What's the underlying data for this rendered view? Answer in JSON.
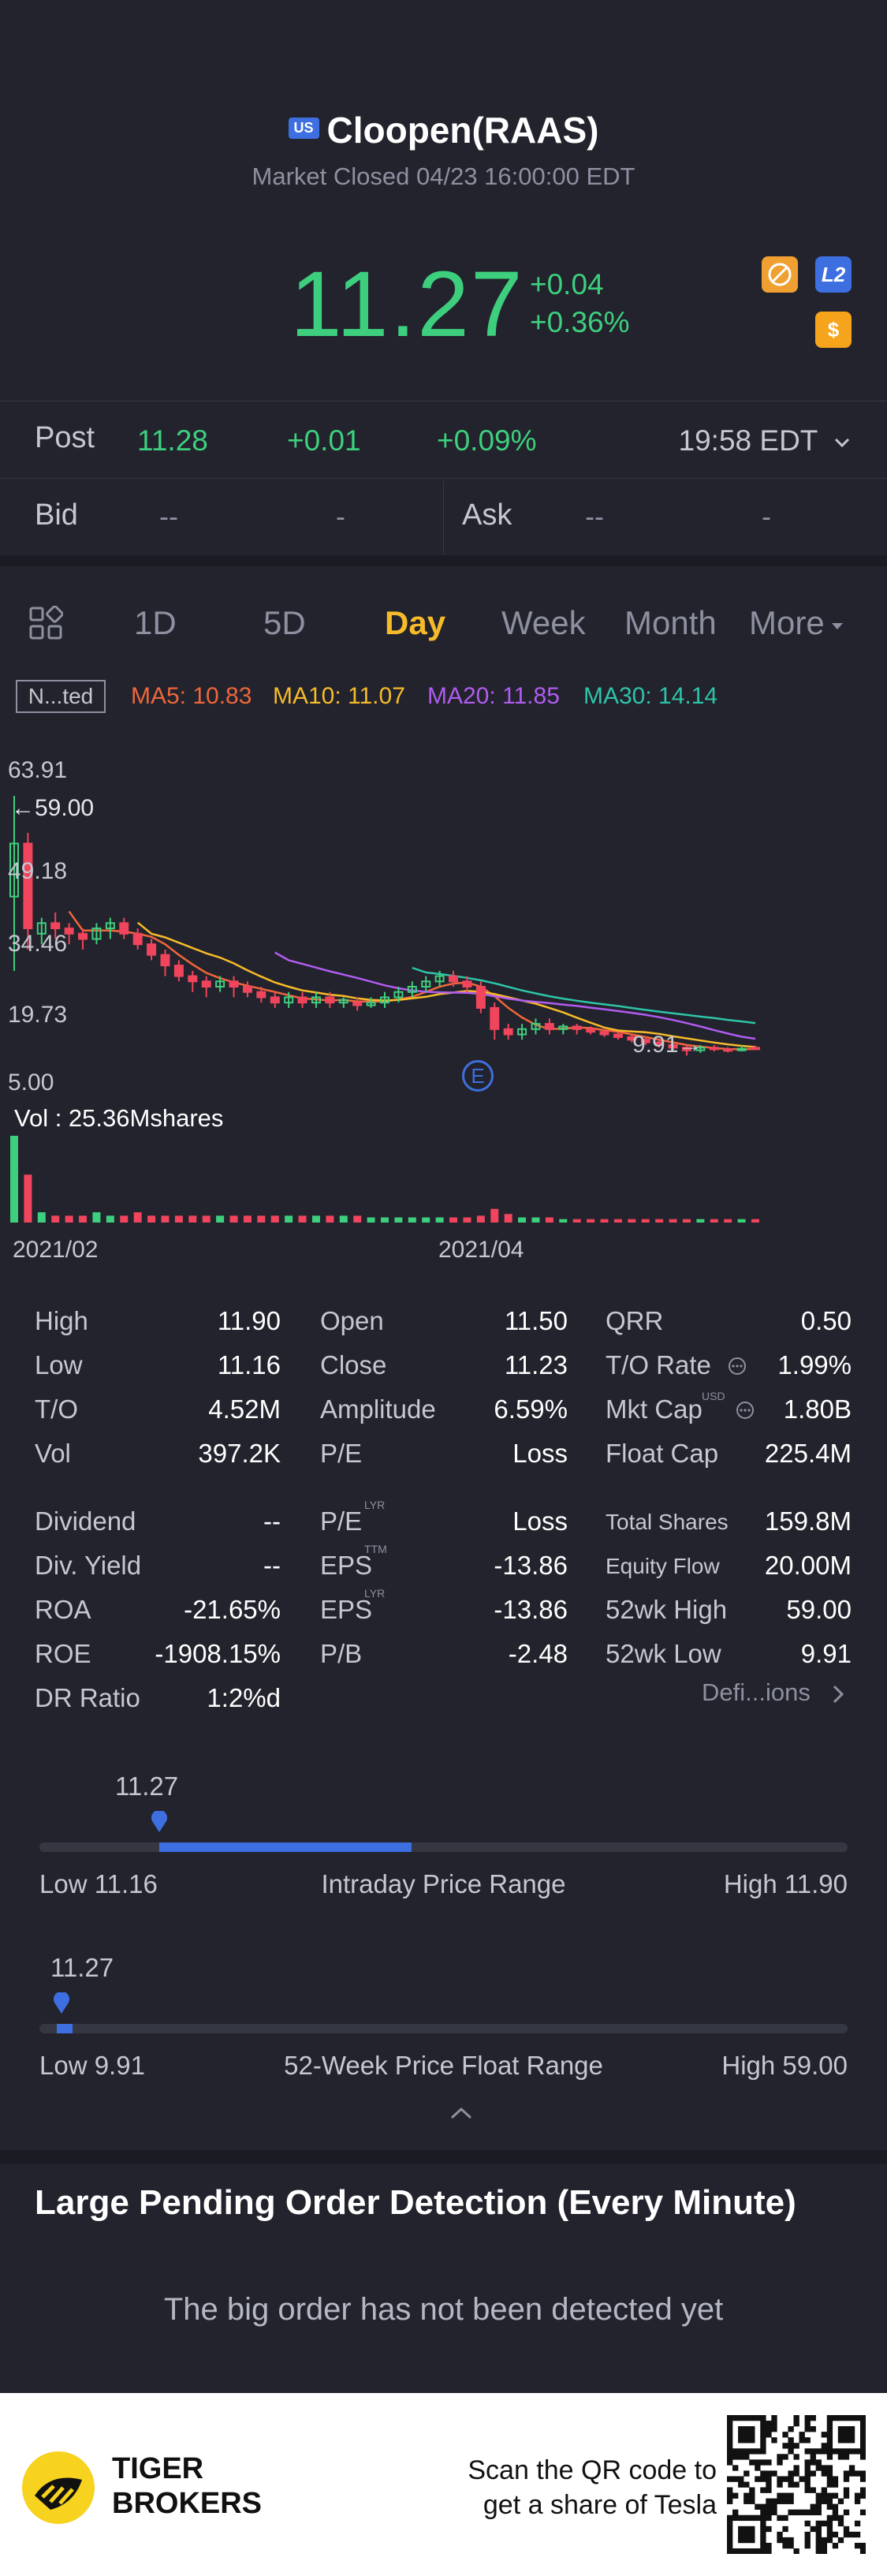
{
  "header": {
    "market_badge": "US",
    "title": "Cloopen(RAAS)",
    "market_status": "Market Closed 04/23 16:00:00 EDT",
    "price": "11.27",
    "change": "+0.04",
    "change_pct": "+0.36%",
    "icons": [
      "compass-icon",
      "l2-icon",
      "dollar-icon"
    ],
    "l2_label": "L2",
    "dollar_label": "$"
  },
  "post": {
    "label": "Post",
    "price": "11.28",
    "change": "+0.01",
    "change_pct": "+0.09%",
    "time": "19:58 EDT"
  },
  "bidask": {
    "bid_label": "Bid",
    "bid_price": "--",
    "bid_size": "-",
    "ask_label": "Ask",
    "ask_price": "--",
    "ask_size": "-"
  },
  "tabs": {
    "items": [
      "1D",
      "5D",
      "Day",
      "Week",
      "Month",
      "More"
    ],
    "active": "Day"
  },
  "ma_legend": {
    "adjust": "N...ted",
    "ma5": "MA5: 10.83",
    "ma10": "MA10: 11.07",
    "ma20": "MA20: 11.85",
    "ma30": "MA30: 14.14",
    "colors": {
      "ma5": "#f0663b",
      "ma10": "#f7bb2a",
      "ma20": "#b05cf0",
      "ma30": "#2ec4a9"
    }
  },
  "chart_data": {
    "type": "candlestick",
    "y_ticks": [
      "63.91",
      "49.18",
      "34.46",
      "19.73",
      "5.00"
    ],
    "y_range": [
      5.0,
      63.91
    ],
    "x_labels": [
      "2021/02",
      "2021/04"
    ],
    "high_marker": "59.00",
    "low_marker": "9.91",
    "event_marker": "E",
    "volume_label": "Vol  : 25.36Mshares",
    "candles": [
      {
        "o": 40,
        "c": 50,
        "h": 59,
        "l": 26,
        "up": true
      },
      {
        "o": 50,
        "c": 34,
        "h": 52,
        "l": 30,
        "up": false
      },
      {
        "o": 33,
        "c": 35,
        "h": 36,
        "l": 31,
        "up": true
      },
      {
        "o": 35,
        "c": 34,
        "h": 37,
        "l": 32,
        "up": false
      },
      {
        "o": 34,
        "c": 33,
        "h": 35,
        "l": 31,
        "up": false
      },
      {
        "o": 33,
        "c": 32,
        "h": 34,
        "l": 30,
        "up": false
      },
      {
        "o": 32,
        "c": 34,
        "h": 35,
        "l": 31,
        "up": true
      },
      {
        "o": 34,
        "c": 35,
        "h": 36,
        "l": 32,
        "up": true
      },
      {
        "o": 35,
        "c": 33,
        "h": 36,
        "l": 32,
        "up": false
      },
      {
        "o": 33,
        "c": 31,
        "h": 34,
        "l": 30,
        "up": false
      },
      {
        "o": 31,
        "c": 29,
        "h": 32,
        "l": 28,
        "up": false
      },
      {
        "o": 29,
        "c": 27,
        "h": 30,
        "l": 25,
        "up": false
      },
      {
        "o": 27,
        "c": 25,
        "h": 28,
        "l": 24,
        "up": false
      },
      {
        "o": 25,
        "c": 24,
        "h": 26,
        "l": 22,
        "up": false
      },
      {
        "o": 24,
        "c": 23,
        "h": 25,
        "l": 21,
        "up": false
      },
      {
        "o": 23,
        "c": 24,
        "h": 25,
        "l": 22,
        "up": true
      },
      {
        "o": 24,
        "c": 23,
        "h": 25,
        "l": 21,
        "up": false
      },
      {
        "o": 23,
        "c": 22,
        "h": 24,
        "l": 21,
        "up": false
      },
      {
        "o": 22,
        "c": 21,
        "h": 23,
        "l": 20,
        "up": false
      },
      {
        "o": 21,
        "c": 20,
        "h": 22,
        "l": 19,
        "up": false
      },
      {
        "o": 20,
        "c": 21,
        "h": 22,
        "l": 19,
        "up": true
      },
      {
        "o": 21,
        "c": 20,
        "h": 22,
        "l": 19,
        "up": false
      },
      {
        "o": 20,
        "c": 21,
        "h": 22,
        "l": 19,
        "up": true
      },
      {
        "o": 21,
        "c": 20,
        "h": 22,
        "l": 19,
        "up": false
      },
      {
        "o": 20,
        "c": 20.5,
        "h": 21,
        "l": 19,
        "up": true
      },
      {
        "o": 20,
        "c": 19.5,
        "h": 21,
        "l": 18.5,
        "up": false
      },
      {
        "o": 19.5,
        "c": 20,
        "h": 21,
        "l": 19,
        "up": true
      },
      {
        "o": 20,
        "c": 21,
        "h": 22,
        "l": 19,
        "up": true
      },
      {
        "o": 21,
        "c": 22,
        "h": 23,
        "l": 20,
        "up": true
      },
      {
        "o": 22,
        "c": 23,
        "h": 24,
        "l": 21,
        "up": true
      },
      {
        "o": 23,
        "c": 24,
        "h": 25,
        "l": 22,
        "up": true
      },
      {
        "o": 24,
        "c": 25,
        "h": 26,
        "l": 23,
        "up": true
      },
      {
        "o": 25,
        "c": 24,
        "h": 26,
        "l": 23,
        "up": false
      },
      {
        "o": 24,
        "c": 23,
        "h": 25,
        "l": 22,
        "up": false
      },
      {
        "o": 23,
        "c": 19,
        "h": 24,
        "l": 18,
        "up": false
      },
      {
        "o": 19,
        "c": 15,
        "h": 20,
        "l": 13,
        "up": false
      },
      {
        "o": 15,
        "c": 14,
        "h": 16,
        "l": 13,
        "up": false
      },
      {
        "o": 14,
        "c": 15,
        "h": 16,
        "l": 13,
        "up": true
      },
      {
        "o": 15,
        "c": 16,
        "h": 17,
        "l": 14,
        "up": true
      },
      {
        "o": 16,
        "c": 15,
        "h": 17,
        "l": 14,
        "up": false
      },
      {
        "o": 15,
        "c": 15.5,
        "h": 16,
        "l": 14,
        "up": true
      },
      {
        "o": 15.5,
        "c": 15,
        "h": 16,
        "l": 14,
        "up": false
      },
      {
        "o": 15,
        "c": 14.5,
        "h": 15.5,
        "l": 14,
        "up": false
      },
      {
        "o": 14.5,
        "c": 14,
        "h": 15,
        "l": 13.5,
        "up": false
      },
      {
        "o": 14,
        "c": 13.5,
        "h": 14.5,
        "l": 13,
        "up": false
      },
      {
        "o": 13.5,
        "c": 13,
        "h": 14,
        "l": 12.5,
        "up": false
      },
      {
        "o": 13,
        "c": 12.5,
        "h": 13.5,
        "l": 12,
        "up": false
      },
      {
        "o": 12.5,
        "c": 12,
        "h": 13,
        "l": 11.5,
        "up": false
      },
      {
        "o": 12,
        "c": 11.5,
        "h": 12.5,
        "l": 11,
        "up": false
      },
      {
        "o": 11.5,
        "c": 11,
        "h": 12,
        "l": 10,
        "up": false
      },
      {
        "o": 11,
        "c": 11.5,
        "h": 12,
        "l": 10.5,
        "up": true
      },
      {
        "o": 11.5,
        "c": 11.2,
        "h": 12,
        "l": 10.8,
        "up": false
      },
      {
        "o": 11.2,
        "c": 11.0,
        "h": 11.6,
        "l": 10.6,
        "up": false
      },
      {
        "o": 11.0,
        "c": 11.3,
        "h": 11.9,
        "l": 10.8,
        "up": true
      },
      {
        "o": 11.5,
        "c": 11.27,
        "h": 11.9,
        "l": 11.16,
        "up": false
      }
    ],
    "volumes": [
      25.36,
      14,
      3,
      2,
      2,
      2,
      3,
      2,
      2,
      3,
      2,
      2,
      2,
      2,
      2,
      2,
      2,
      2,
      2,
      2,
      2,
      2,
      2,
      2,
      2,
      2,
      1.5,
      1.5,
      1.5,
      1.5,
      1.5,
      1.5,
      1.5,
      1.5,
      2,
      4,
      2.5,
      1.5,
      1.5,
      1.5,
      1,
      1,
      1,
      1,
      1,
      1,
      1,
      1,
      1,
      1,
      1,
      1,
      1,
      1,
      1
    ]
  },
  "stats": {
    "col1": [
      {
        "label": "High",
        "value": "11.90"
      },
      {
        "label": "Low",
        "value": "11.16"
      },
      {
        "label": "T/O",
        "value": "4.52M"
      },
      {
        "label": "Vol",
        "value": "397.2K"
      }
    ],
    "col2": [
      {
        "label": "Open",
        "value": "11.50"
      },
      {
        "label": "Close",
        "value": "11.23"
      },
      {
        "label": "Amplitude",
        "value": "6.59%"
      },
      {
        "label": "P/E",
        "value": "Loss"
      }
    ],
    "col3": [
      {
        "label": "QRR",
        "value": "0.50"
      },
      {
        "label": "T/O Rate",
        "value": "1.99%"
      },
      {
        "label": "Mkt Cap",
        "value": "1.80B"
      },
      {
        "label": "Float Cap",
        "value": "225.4M"
      }
    ],
    "col1b": [
      {
        "label": "Dividend",
        "value": "--"
      },
      {
        "label": "Div. Yield",
        "value": "--"
      },
      {
        "label": "ROA",
        "value": "-21.65%"
      },
      {
        "label": "ROE",
        "value": "-1908.15%"
      },
      {
        "label": "DR Ratio",
        "value": "1:2%d"
      }
    ],
    "col2b": [
      {
        "label": "P/E",
        "value": "Loss",
        "sup": "LYR"
      },
      {
        "label": "EPS",
        "value": "-13.86",
        "sup": "TTM"
      },
      {
        "label": "EPS",
        "value": "-13.86",
        "sup": "LYR"
      },
      {
        "label": "P/B",
        "value": "-2.48"
      }
    ],
    "col3b": [
      {
        "label": "Total Shares",
        "value": "159.8M"
      },
      {
        "label": "Equity Flow",
        "value": "20.00M"
      },
      {
        "label": "52wk High",
        "value": "59.00"
      },
      {
        "label": "52wk Low",
        "value": "9.91"
      }
    ],
    "mktcap_unit": "USD",
    "definitions": "Defi...ions"
  },
  "intraday_range": {
    "current": "11.27",
    "low": "Low 11.16",
    "label": "Intraday Price Range",
    "high": "High 11.90",
    "fill_start": 0.0,
    "fill_end": 0.32,
    "pin_pos": 0.149
  },
  "week52_range": {
    "current": "11.27",
    "low": "Low 9.91",
    "label": "52-Week Price Float Range",
    "high": "High 59.00",
    "pin_pos": 0.028
  },
  "large_order": {
    "title": "Large Pending Order Detection (Every Minute)",
    "message": "The big order has not been detected yet"
  },
  "footer": {
    "brand_line1": "TIGER",
    "brand_line2": "BROKERS",
    "scan_line1": "Scan the QR code to",
    "scan_line2": "get a share of Tesla"
  }
}
